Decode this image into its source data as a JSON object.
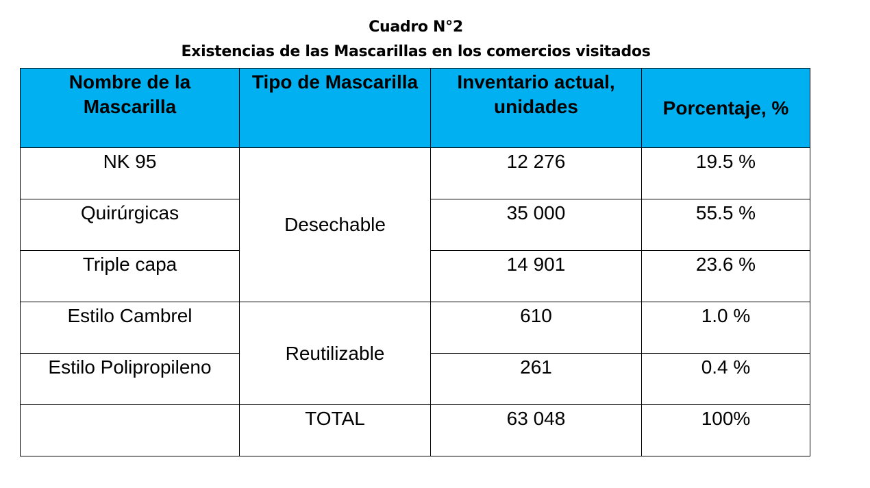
{
  "title": {
    "line1": "Cuadro N°2",
    "line2": "Existencias de las Mascarillas en los comercios visitados"
  },
  "table": {
    "headers": [
      "Nombre de la Mascarilla",
      "Tipo de Mascarilla",
      "Inventario actual, unidades",
      "Porcentaje, %"
    ],
    "groups": [
      {
        "type": "Desechable",
        "rows": [
          {
            "name": "NK 95",
            "inventory": "12 276",
            "percent": "19.5 %"
          },
          {
            "name": "Quirúrgicas",
            "inventory": "35 000",
            "percent": "55.5 %"
          },
          {
            "name": "Triple capa",
            "inventory": "14 901",
            "percent": "23.6 %"
          }
        ]
      },
      {
        "type": "Reutilizable",
        "rows": [
          {
            "name": "Estilo Cambrel",
            "inventory": "610",
            "percent": "1.0 %"
          },
          {
            "name": "Estilo Polipropileno",
            "inventory": "261",
            "percent": "0.4 %"
          }
        ]
      }
    ],
    "total": {
      "name": "",
      "label": "TOTAL",
      "inventory": "63 048",
      "percent": "100%"
    }
  }
}
